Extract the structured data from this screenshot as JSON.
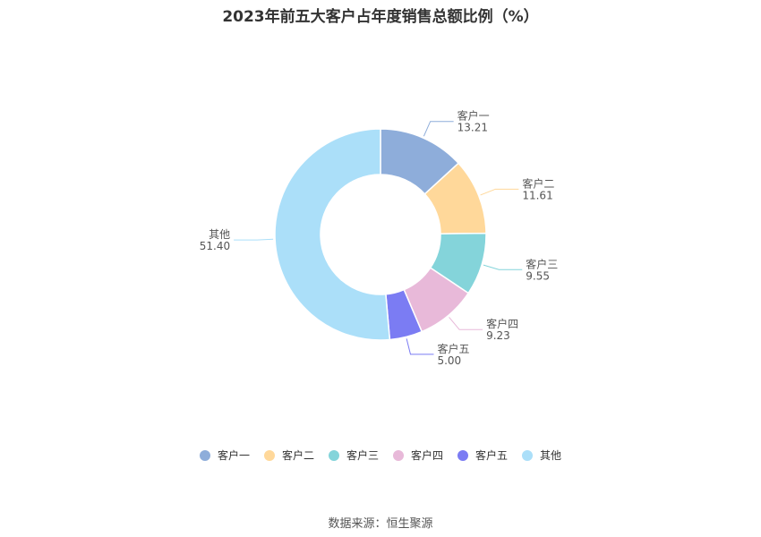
{
  "chart_data": {
    "type": "pie",
    "donut": true,
    "title": "2023年前五大客户占年度销售总额比例（%）",
    "categories": [
      "客户一",
      "客户二",
      "客户三",
      "客户四",
      "客户五",
      "其他"
    ],
    "values": [
      13.21,
      11.61,
      9.55,
      9.23,
      5.0,
      51.4
    ],
    "value_labels": [
      "13.21",
      "11.61",
      "9.55",
      "9.23",
      "5.00",
      "51.40"
    ],
    "colors": [
      "#8eadda",
      "#ffd89a",
      "#84d4da",
      "#e8b9d9",
      "#7b7cf3",
      "#abdff9"
    ],
    "legend_position": "bottom"
  },
  "source": "数据来源：恒生聚源"
}
